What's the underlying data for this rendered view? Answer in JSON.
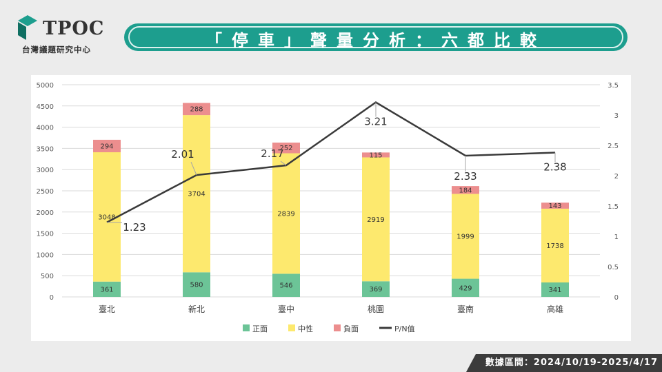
{
  "logo": {
    "text": "TPOC",
    "subtitle": "台灣議題研究中心"
  },
  "header": {
    "title": "「停車」聲量分析：六都比較"
  },
  "footer": {
    "date_range": "數據區間：2024/10/19-2025/4/17"
  },
  "colors": {
    "positive": "#6cc497",
    "neutral": "#fde96e",
    "negative": "#ec8e8e",
    "pn_line": "#3a3a3a",
    "title_bar": "#1d9e8e"
  },
  "chart_data": {
    "type": "bar",
    "stacked": true,
    "categories": [
      "臺北",
      "新北",
      "臺中",
      "桃園",
      "臺南",
      "高雄"
    ],
    "series": [
      {
        "name": "正面",
        "values": [
          361,
          580,
          546,
          369,
          429,
          341
        ]
      },
      {
        "name": "中性",
        "values": [
          3048,
          3704,
          2839,
          2919,
          1999,
          1738
        ]
      },
      {
        "name": "負面",
        "values": [
          294,
          288,
          252,
          115,
          184,
          143
        ]
      }
    ],
    "line_series": {
      "name": "P/N值",
      "axis": "right",
      "values": [
        1.23,
        2.01,
        2.17,
        3.21,
        2.33,
        2.38
      ]
    },
    "ylim": [
      0,
      5000
    ],
    "y_ticks": [
      0,
      500,
      1000,
      1500,
      2000,
      2500,
      3000,
      3500,
      4000,
      4500,
      5000
    ],
    "y2lim": [
      0,
      3.5
    ],
    "y2_ticks": [
      0,
      0.5,
      1,
      1.5,
      2,
      2.5,
      3,
      3.5
    ],
    "grid": true,
    "legend": "bottom"
  }
}
